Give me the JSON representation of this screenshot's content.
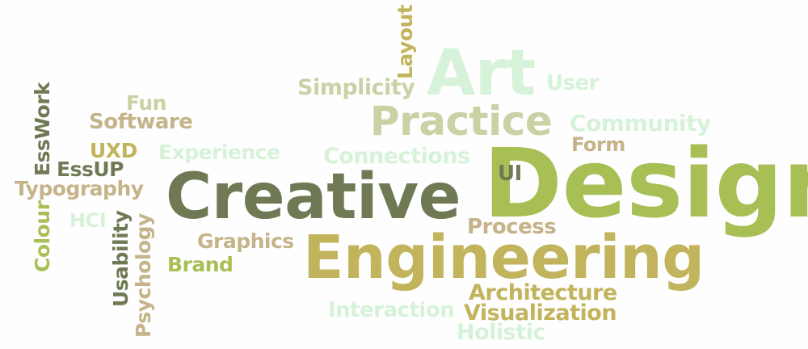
{
  "palette": {
    "olive_dark": "#6f7a55",
    "olive": "#8f9a62",
    "lime": "#a8bf55",
    "gold": "#c2b45c",
    "tan": "#c5b389",
    "sage": "#c8d2a4",
    "mint": "#d6f2d8",
    "green_dark": "#5f7a4a"
  },
  "words": {
    "design": "Design",
    "creative": "Creative",
    "engineering": "Engineering",
    "art": "Art",
    "practice": "Practice",
    "ui": "UI",
    "community": "Community",
    "form": "Form",
    "user": "User",
    "connections": "Connections",
    "simplicity": "Simplicity",
    "layout": "Layout",
    "experience": "Experience",
    "fun": "Fun",
    "software": "Software",
    "uxd": "UXD",
    "esswork": "EssWork",
    "essup": "EssUP",
    "typography": "Typography",
    "colour": "Colour",
    "hci": "HCI",
    "usability": "Usability",
    "psychology": "Psychology",
    "graphics": "Graphics",
    "brand": "Brand",
    "process": "Process",
    "architecture": "Architecture",
    "visualization": "Visualization",
    "interaction": "Interaction",
    "holistic": "Holistic"
  }
}
